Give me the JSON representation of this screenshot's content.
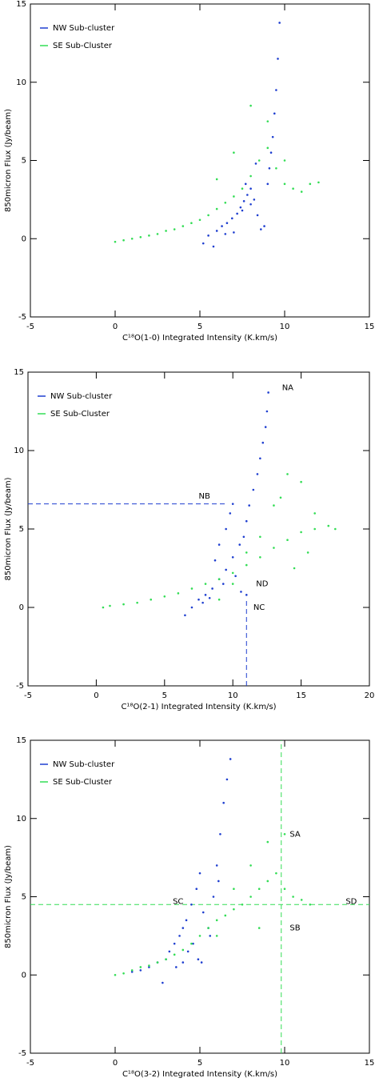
{
  "chart_data": [
    {
      "type": "scatter",
      "x_label": "C¹⁸O(1-0) Integrated Intensity (K.km/s)",
      "y_label": "850micron Flux (Jy/beam)",
      "xlim": [
        -5,
        15
      ],
      "ylim": [
        -5,
        15
      ],
      "xticks": [
        -5,
        0,
        5,
        10,
        15
      ],
      "yticks": [
        -5,
        0,
        5,
        10,
        15
      ],
      "legend": "upper left",
      "series": [
        {
          "name": "NW Sub-cluster",
          "color": "#1f3fd0",
          "x": [
            5.2,
            5.5,
            5.8,
            6.0,
            6.3,
            6.6,
            6.9,
            7.2,
            7.4,
            7.6,
            7.8,
            8.0,
            8.2,
            8.4,
            8.6,
            8.8,
            9.0,
            9.1,
            9.2,
            9.3,
            9.4,
            9.5,
            9.6,
            9.7,
            7.0,
            7.5,
            8.0,
            6.5,
            7.7,
            8.3
          ],
          "values": [
            -0.3,
            0.2,
            -0.5,
            0.5,
            0.8,
            1.0,
            1.3,
            1.6,
            2.0,
            2.4,
            2.8,
            3.2,
            2.5,
            1.5,
            0.6,
            0.8,
            3.5,
            4.5,
            5.5,
            6.5,
            8.0,
            9.5,
            11.5,
            13.8,
            0.4,
            1.8,
            2.2,
            0.3,
            3.5,
            4.8
          ]
        },
        {
          "name": "SE Sub-Cluster",
          "color": "#33dd55",
          "x": [
            0,
            0.5,
            1,
            1.5,
            2,
            2.5,
            3,
            3.5,
            4,
            4.5,
            5,
            5.5,
            6,
            6.5,
            7,
            7.5,
            8,
            8.5,
            9,
            9.5,
            10,
            10.5,
            11,
            11.5,
            12,
            6,
            7,
            8,
            9,
            10
          ],
          "values": [
            -0.2,
            -0.1,
            0,
            0.1,
            0.2,
            0.3,
            0.5,
            0.6,
            0.8,
            1.0,
            1.2,
            1.5,
            1.9,
            2.3,
            2.7,
            3.2,
            4.0,
            5.0,
            5.8,
            4.5,
            3.5,
            3.2,
            3.0,
            3.5,
            3.6,
            3.8,
            5.5,
            8.5,
            7.5,
            5.0
          ]
        }
      ]
    },
    {
      "type": "scatter",
      "x_label": "C¹⁸O(2-1) Integrated Intensity (K.km/s)",
      "y_label": "850micron Flux (Jy/beam)",
      "xlim": [
        -5,
        20
      ],
      "ylim": [
        -5,
        15
      ],
      "xticks": [
        -5,
        0,
        5,
        10,
        15,
        20
      ],
      "yticks": [
        -5,
        0,
        5,
        10,
        15
      ],
      "legend": "upper left",
      "series": [
        {
          "name": "NW Sub-cluster",
          "color": "#1f3fd0",
          "x": [
            6.5,
            7,
            7.5,
            8,
            8.5,
            9,
            9.5,
            10,
            10.5,
            10.8,
            11,
            11.2,
            11.5,
            11.8,
            12,
            12.2,
            12.4,
            12.5,
            12.6,
            9.8,
            9.5,
            9.0,
            8.7,
            10.2,
            10.6,
            11.0,
            7.8,
            8.3,
            9.3,
            10.0
          ],
          "values": [
            -0.5,
            0.0,
            0.5,
            0.8,
            1.2,
            1.8,
            2.4,
            3.2,
            4.0,
            4.5,
            5.5,
            6.5,
            7.5,
            8.5,
            9.5,
            10.5,
            11.5,
            12.5,
            13.7,
            6.0,
            5.0,
            4.0,
            3.0,
            2.0,
            1.0,
            0.8,
            0.3,
            0.6,
            1.5,
            6.6
          ]
        },
        {
          "name": "SE Sub-Cluster",
          "color": "#33dd55",
          "x": [
            0.5,
            1,
            2,
            3,
            4,
            5,
            6,
            7,
            8,
            9,
            10,
            11,
            12,
            13,
            14,
            15,
            16,
            17,
            17.5,
            13,
            14,
            15,
            16,
            12,
            11,
            10,
            9,
            13.5,
            14.5,
            15.5
          ],
          "values": [
            0,
            0.1,
            0.2,
            0.3,
            0.5,
            0.7,
            0.9,
            1.2,
            1.5,
            1.8,
            2.2,
            2.7,
            3.2,
            3.8,
            4.3,
            4.8,
            5.0,
            5.2,
            5.0,
            6.5,
            8.5,
            8.0,
            6.0,
            4.5,
            3.5,
            1.5,
            0.5,
            7.0,
            2.5,
            3.5
          ]
        }
      ],
      "reference_lines": [
        {
          "orientation": "h",
          "value": 6.6,
          "from": -5,
          "to": 9.6,
          "color": "#1f3fd0"
        },
        {
          "orientation": "v",
          "value": 11,
          "from": -5,
          "to": 0.6,
          "color": "#1f3fd0"
        }
      ],
      "annotations": [
        {
          "text": "NA",
          "x": 13.6,
          "y": 14,
          "color": "#1f3fd0"
        },
        {
          "text": "NB",
          "x": 7.5,
          "y": 7.1,
          "color": "#1f3fd0"
        },
        {
          "text": "ND",
          "x": 11.7,
          "y": 1.5,
          "color": "#1f3fd0"
        },
        {
          "text": "NC",
          "x": 11.5,
          "y": 0,
          "color": "#1f3fd0"
        }
      ]
    },
    {
      "type": "scatter",
      "x_label": "C¹⁸O(3-2) Integrated Intensity (K.km/s)",
      "y_label": "850micron Flux (Jy/beam)",
      "xlim": [
        -5,
        15
      ],
      "ylim": [
        -5,
        15
      ],
      "xticks": [
        -5,
        0,
        5,
        10,
        15
      ],
      "yticks": [
        -5,
        0,
        5,
        10,
        15
      ],
      "legend": "upper left",
      "series": [
        {
          "name": "NW Sub-cluster",
          "color": "#1f3fd0",
          "x": [
            1,
            1.5,
            2,
            2.5,
            3,
            3.2,
            3.5,
            3.8,
            4,
            4.2,
            4.5,
            4.8,
            5,
            5.2,
            5.5,
            5.8,
            6,
            6.2,
            6.4,
            6.6,
            6.8,
            4.6,
            4.9,
            5.1,
            3.6,
            4.0,
            2.8,
            5.6,
            6.1,
            4.3
          ],
          "values": [
            0.2,
            0.3,
            0.5,
            0.8,
            1.0,
            1.5,
            2.0,
            2.5,
            3.0,
            3.5,
            4.5,
            5.5,
            6.5,
            4.0,
            3.0,
            5.0,
            7.0,
            9.0,
            11.0,
            12.5,
            13.8,
            2.0,
            1.0,
            0.8,
            0.5,
            0.8,
            -0.5,
            2.5,
            6.0,
            1.5
          ]
        },
        {
          "name": "SE Sub-Cluster",
          "color": "#33dd55",
          "x": [
            0,
            0.5,
            1,
            1.5,
            2,
            2.5,
            3,
            3.5,
            4,
            4.5,
            5,
            5.5,
            6,
            6.5,
            7,
            7.5,
            8,
            8.5,
            9,
            9.5,
            10,
            10.5,
            11,
            11.5,
            7,
            8,
            9,
            10,
            6,
            8.5
          ],
          "values": [
            0,
            0.1,
            0.3,
            0.5,
            0.6,
            0.8,
            1.0,
            1.3,
            1.6,
            2.0,
            2.5,
            3.0,
            3.5,
            3.8,
            4.2,
            4.5,
            5.0,
            5.5,
            6.0,
            6.5,
            5.5,
            5.0,
            4.8,
            4.5,
            5.5,
            7.0,
            8.5,
            9.0,
            2.5,
            3.0
          ]
        }
      ],
      "reference_lines": [
        {
          "orientation": "h",
          "value": 4.5,
          "from": -5,
          "to": 15,
          "color": "#33dd55"
        },
        {
          "orientation": "v",
          "value": 9.8,
          "from": -5,
          "to": 15,
          "color": "#33dd55"
        }
      ],
      "annotations": [
        {
          "text": "SA",
          "x": 10.3,
          "y": 9,
          "color": "#33dd55"
        },
        {
          "text": "SB",
          "x": 10.3,
          "y": 3,
          "color": "#33dd55"
        },
        {
          "text": "SC",
          "x": 3.4,
          "y": 4.7,
          "color": "#33dd55"
        },
        {
          "text": "SD",
          "x": 13.6,
          "y": 4.7,
          "color": "#33dd55"
        }
      ]
    }
  ]
}
